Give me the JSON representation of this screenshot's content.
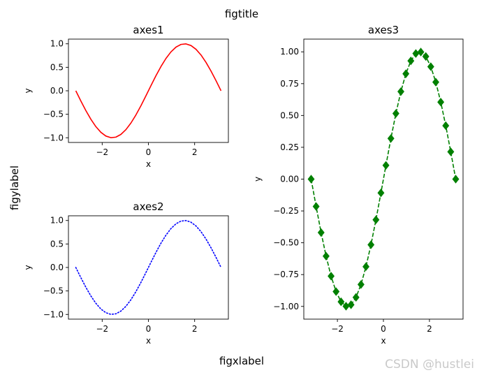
{
  "figure": {
    "suptitle": "figtitle",
    "supxlabel": "figxlabel",
    "supylabel": "figylabel",
    "watermark": "CSDN @hustlei"
  },
  "chart_data": [
    {
      "id": "axes1",
      "type": "line",
      "title": "axes1",
      "xlabel": "x",
      "ylabel": "y",
      "xlim": [
        -3.46,
        3.46
      ],
      "ylim": [
        -1.1,
        1.1
      ],
      "xticks": [
        -2,
        0,
        2
      ],
      "xtick_labels": [
        "−2",
        "0",
        "2"
      ],
      "yticks": [
        -1.0,
        -0.5,
        0.0,
        0.5,
        1.0
      ],
      "ytick_labels": [
        "−1.0",
        "−0.5",
        "0.0",
        "0.5",
        "1.0"
      ],
      "grid": false,
      "series": [
        {
          "function": "sin(x)",
          "x_range": [
            -3.1416,
            3.1416
          ],
          "points": 30,
          "color": "#ff0000",
          "linestyle": "solid",
          "marker": "none"
        }
      ]
    },
    {
      "id": "axes2",
      "type": "line",
      "title": "axes2",
      "xlabel": "x",
      "ylabel": "y",
      "xlim": [
        -3.46,
        3.46
      ],
      "ylim": [
        -1.1,
        1.1
      ],
      "xticks": [
        -2,
        0,
        2
      ],
      "xtick_labels": [
        "−2",
        "0",
        "2"
      ],
      "yticks": [
        -1.0,
        -0.5,
        0.0,
        0.5,
        1.0
      ],
      "ytick_labels": [
        "−1.0",
        "−0.5",
        "0.0",
        "0.5",
        "1.0"
      ],
      "grid": false,
      "series": [
        {
          "function": "sin(x)",
          "x_range": [
            -3.1416,
            3.1416
          ],
          "points": 30,
          "color": "#0000ff",
          "linestyle": "dotted",
          "marker": "none"
        }
      ]
    },
    {
      "id": "axes3",
      "type": "line",
      "title": "axes3",
      "xlabel": "x",
      "ylabel": "y",
      "xlim": [
        -3.46,
        3.46
      ],
      "ylim": [
        -1.1,
        1.1
      ],
      "xticks": [
        -2,
        0,
        2
      ],
      "xtick_labels": [
        "−2",
        "0",
        "2"
      ],
      "yticks": [
        -1.0,
        -0.75,
        -0.5,
        -0.25,
        0.0,
        0.25,
        0.5,
        0.75,
        1.0
      ],
      "ytick_labels": [
        "−1.00",
        "−0.75",
        "−0.50",
        "−0.25",
        "0.00",
        "0.25",
        "0.50",
        "0.75",
        "1.00"
      ],
      "grid": false,
      "series": [
        {
          "function": "sin(x)",
          "x_range": [
            -3.1416,
            3.1416
          ],
          "points": 30,
          "color": "#008000",
          "linestyle": "dashed",
          "marker": "diamond"
        }
      ]
    }
  ]
}
